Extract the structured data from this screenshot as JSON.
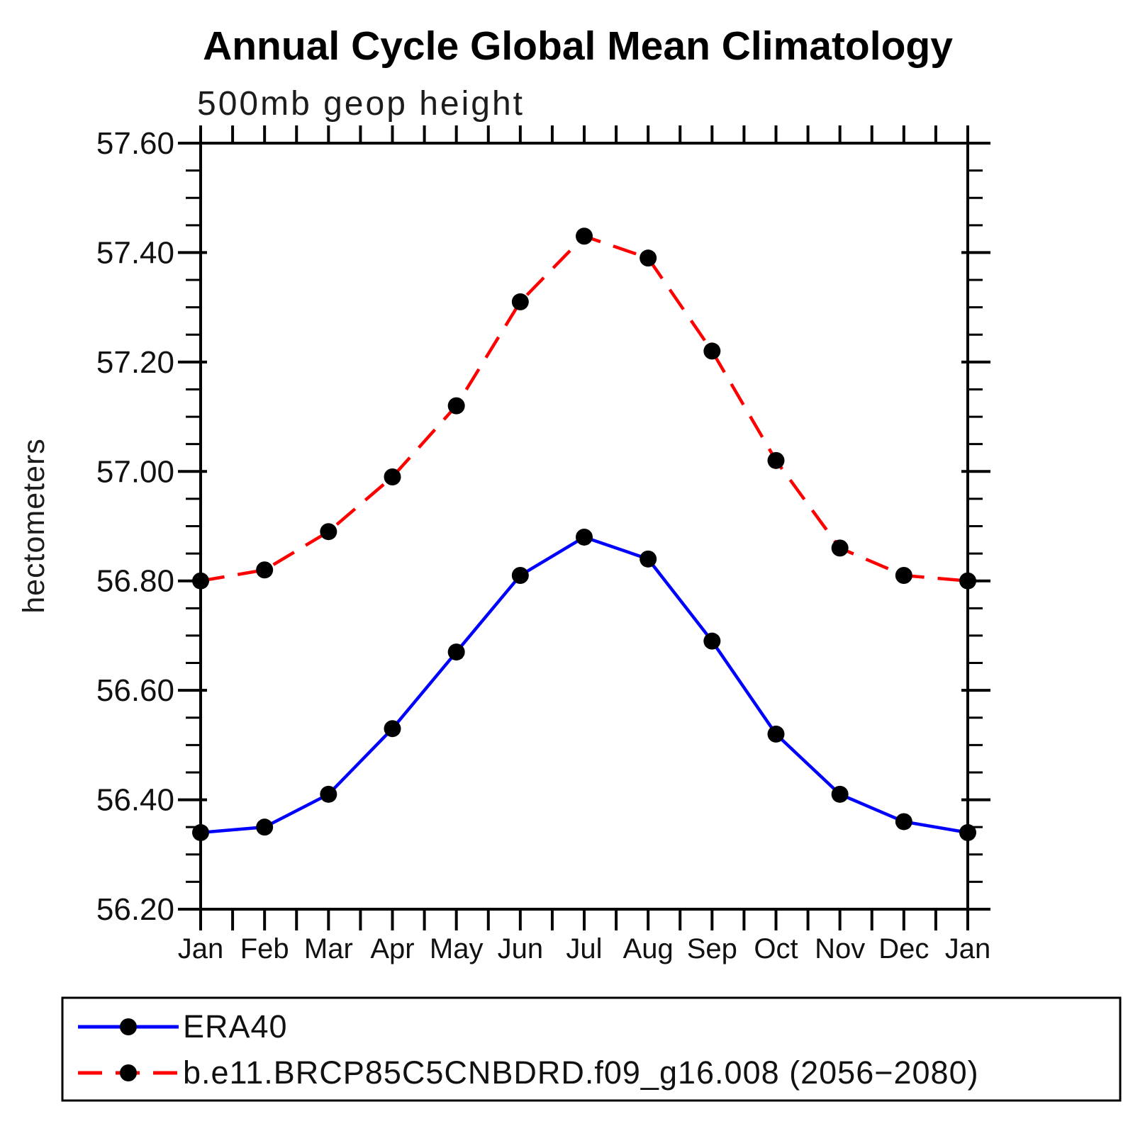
{
  "page": {
    "title": "Annual Cycle Global Mean Climatology",
    "subtitle": "500mb geop height"
  },
  "chart_data": {
    "type": "line",
    "title": "Annual Cycle Global Mean Climatology",
    "subtitle": "500mb geop height",
    "xlabel": "",
    "ylabel": "hectometers",
    "x_categories": [
      "Jan",
      "Feb",
      "Mar",
      "Apr",
      "May",
      "Jun",
      "Jul",
      "Aug",
      "Sep",
      "Oct",
      "Nov",
      "Dec",
      "Jan"
    ],
    "ylim": [
      56.2,
      57.6
    ],
    "ytick_step": 0.2,
    "yminor_step": 0.05,
    "xminor_per_month": 2,
    "ytick_labels": [
      "56.20",
      "56.40",
      "56.60",
      "56.80",
      "57.00",
      "57.20",
      "57.40",
      "57.60"
    ],
    "grid": false,
    "axis_color": "#000000",
    "marker_color": "#000000",
    "legend_position": "bottom-left-box",
    "series": [
      {
        "name": "ERA40",
        "color": "#0000ff",
        "line_style": "solid",
        "marker": "filled-circle",
        "values": [
          56.34,
          56.35,
          56.41,
          56.53,
          56.67,
          56.81,
          56.88,
          56.84,
          56.69,
          56.52,
          56.41,
          56.36,
          56.34
        ]
      },
      {
        "name": "b.e11.BRCP85C5CNBDRD.f09_g16.008 (2056−2080)",
        "color": "#ff0000",
        "line_style": "dashed",
        "marker": "filled-circle",
        "values": [
          56.8,
          56.82,
          56.89,
          56.99,
          57.12,
          57.31,
          57.43,
          57.39,
          57.22,
          57.02,
          56.86,
          56.81,
          56.8
        ]
      }
    ]
  }
}
